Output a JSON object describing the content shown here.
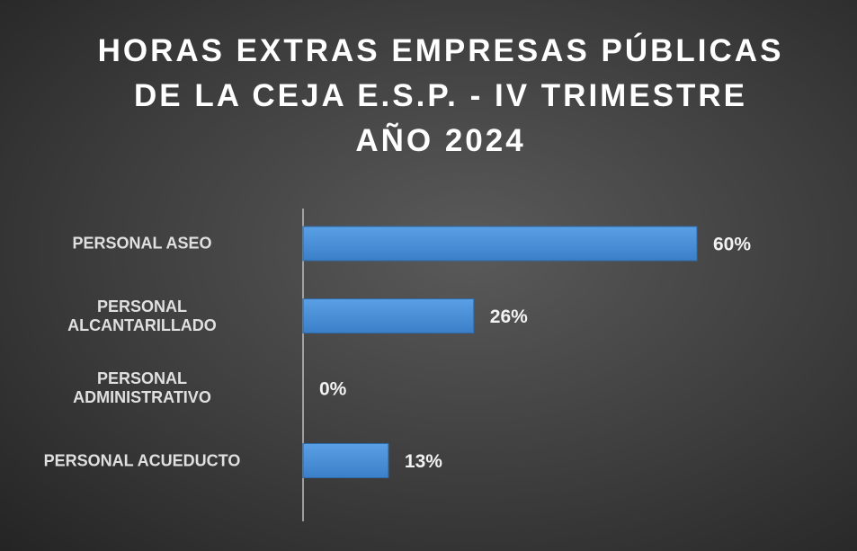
{
  "chart_data": {
    "type": "bar",
    "orientation": "horizontal",
    "title": "HORAS EXTRAS EMPRESAS PÚBLICAS\nDE LA CEJA E.S.P. - IV TRIMESTRE\nAÑO 2024",
    "categories": [
      "PERSONAL ASEO",
      "PERSONAL\nALCANTARILLADO",
      "PERSONAL\nADMINISTRATIVO",
      "PERSONAL ACUEDUCTO"
    ],
    "values": [
      60,
      26,
      0,
      13
    ],
    "value_labels": [
      "60%",
      "26%",
      "0%",
      "13%"
    ],
    "color": "#4a8fd8"
  }
}
